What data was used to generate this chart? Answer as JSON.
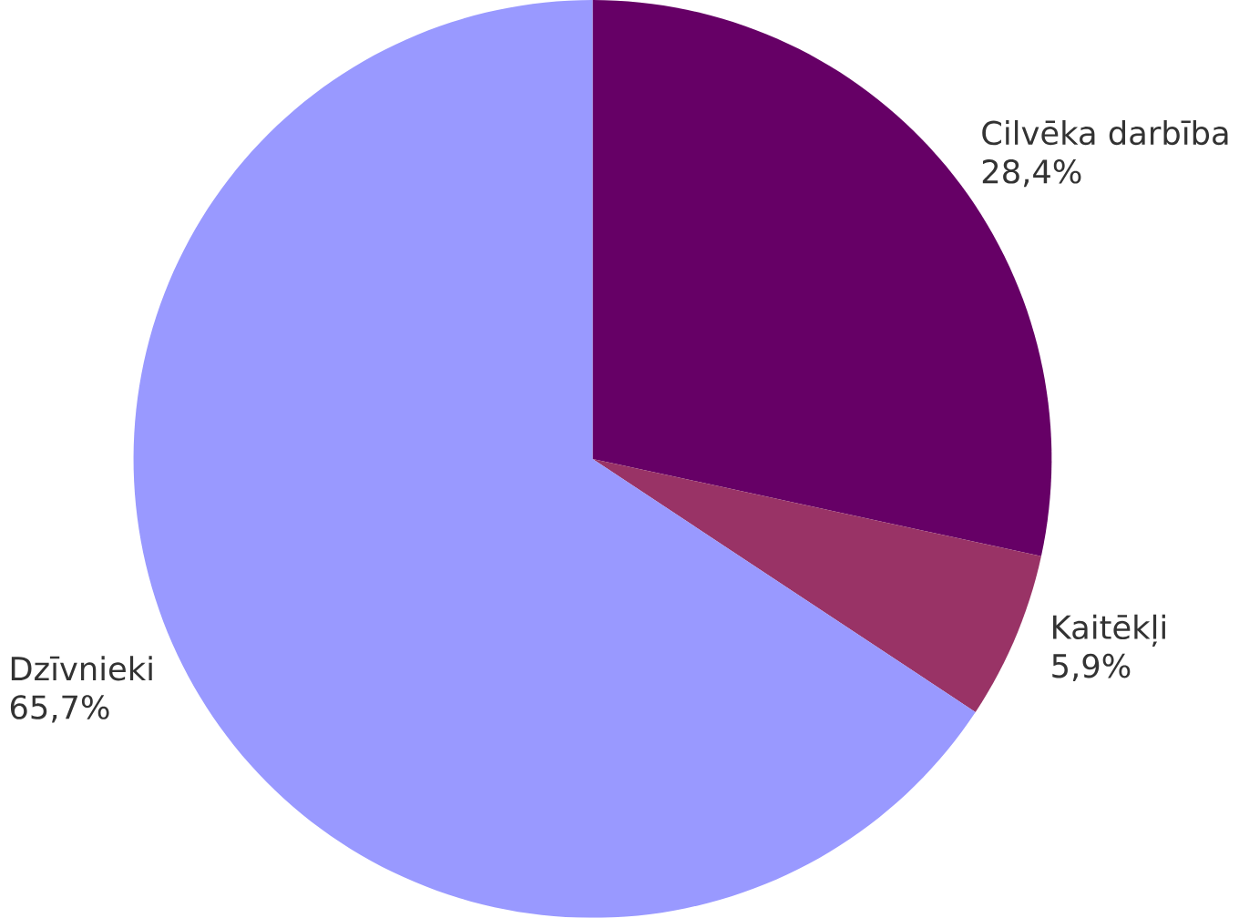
{
  "chart_data": {
    "type": "pie",
    "categories": [
      "Cilvēka darbība",
      "Kaitēkļi",
      "Dzīvnieki"
    ],
    "values": [
      28.4,
      5.9,
      65.7
    ],
    "value_labels": [
      "28,4%",
      "5,9%",
      "65,7%"
    ],
    "colors": [
      "#660066",
      "#993366",
      "#9999ff"
    ]
  }
}
